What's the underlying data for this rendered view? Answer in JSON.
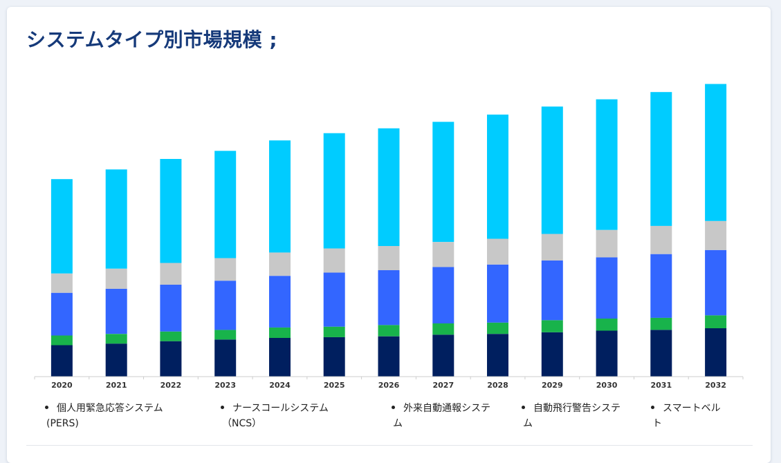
{
  "title": "システムタイプ別市場規模 ;",
  "colors": {
    "title": "#163a7a",
    "axis": "#cccccc"
  },
  "chart_data": {
    "type": "bar",
    "stacked": true,
    "categories": [
      "2020",
      "2021",
      "2022",
      "2023",
      "2024",
      "2025",
      "2026",
      "2027",
      "2028",
      "2029",
      "2030",
      "2031",
      "2032"
    ],
    "series": [
      {
        "name": "個人用緊急応答システム (PERS)",
        "color": "#001f5f",
        "values": [
          39,
          41,
          44,
          46,
          48,
          49,
          50,
          52,
          53,
          55,
          57,
          58,
          60
        ]
      },
      {
        "name": "ナースコールシステム（NCS）",
        "color": "#18b34b",
        "values": [
          12,
          12,
          12,
          12,
          13,
          13,
          14,
          14,
          14,
          15,
          15,
          15,
          16
        ]
      },
      {
        "name": "外来自動通報システム",
        "color": "#3366ff",
        "values": [
          53,
          56,
          58,
          61,
          64,
          67,
          68,
          70,
          72,
          74,
          76,
          79,
          81
        ]
      },
      {
        "name": "自動飛行警告システム",
        "color": "#c8c8c8",
        "values": [
          24,
          25,
          27,
          28,
          29,
          30,
          30,
          31,
          32,
          33,
          34,
          35,
          36
        ]
      },
      {
        "name": "スマートベルト",
        "color": "#00ccff",
        "values": [
          117,
          123,
          129,
          133,
          139,
          143,
          146,
          149,
          154,
          158,
          162,
          166,
          170
        ]
      }
    ],
    "ylim": [
      0,
      360
    ],
    "grid": false,
    "legend_position": "bottom"
  },
  "legend": [
    {
      "line1": "個人用緊急応答システム",
      "line2": "(PERS)"
    },
    {
      "line1": "ナースコールシステム",
      "line2": "（NCS）"
    },
    {
      "line1": "外来自動通報システ",
      "line2": "ム"
    },
    {
      "line1": "自動飛行警告システ",
      "line2": "ム"
    },
    {
      "line1": "スマートベル",
      "line2": "ト"
    }
  ]
}
